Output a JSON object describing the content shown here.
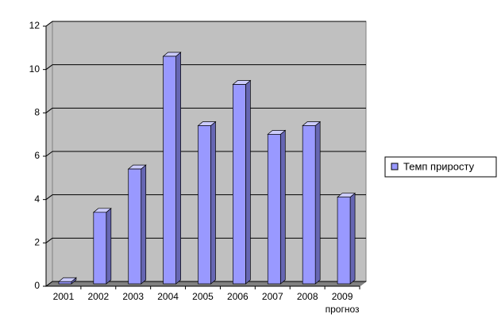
{
  "chart_data": {
    "type": "bar3d",
    "categories": [
      "2001",
      "2002",
      "2003",
      "2004",
      "2005",
      "2006",
      "2007",
      "2008",
      "2009"
    ],
    "annotation": "прогноз",
    "series": [
      {
        "name": "Темп приросту",
        "color": "#9999ff",
        "values": [
          0.1,
          3.3,
          5.3,
          10.5,
          7.3,
          9.2,
          6.9,
          7.3,
          4.0
        ]
      }
    ],
    "ylim": [
      0,
      12
    ],
    "yticks": [
      0,
      2,
      4,
      6,
      8,
      10,
      12
    ],
    "grid": true,
    "legend": "right"
  }
}
